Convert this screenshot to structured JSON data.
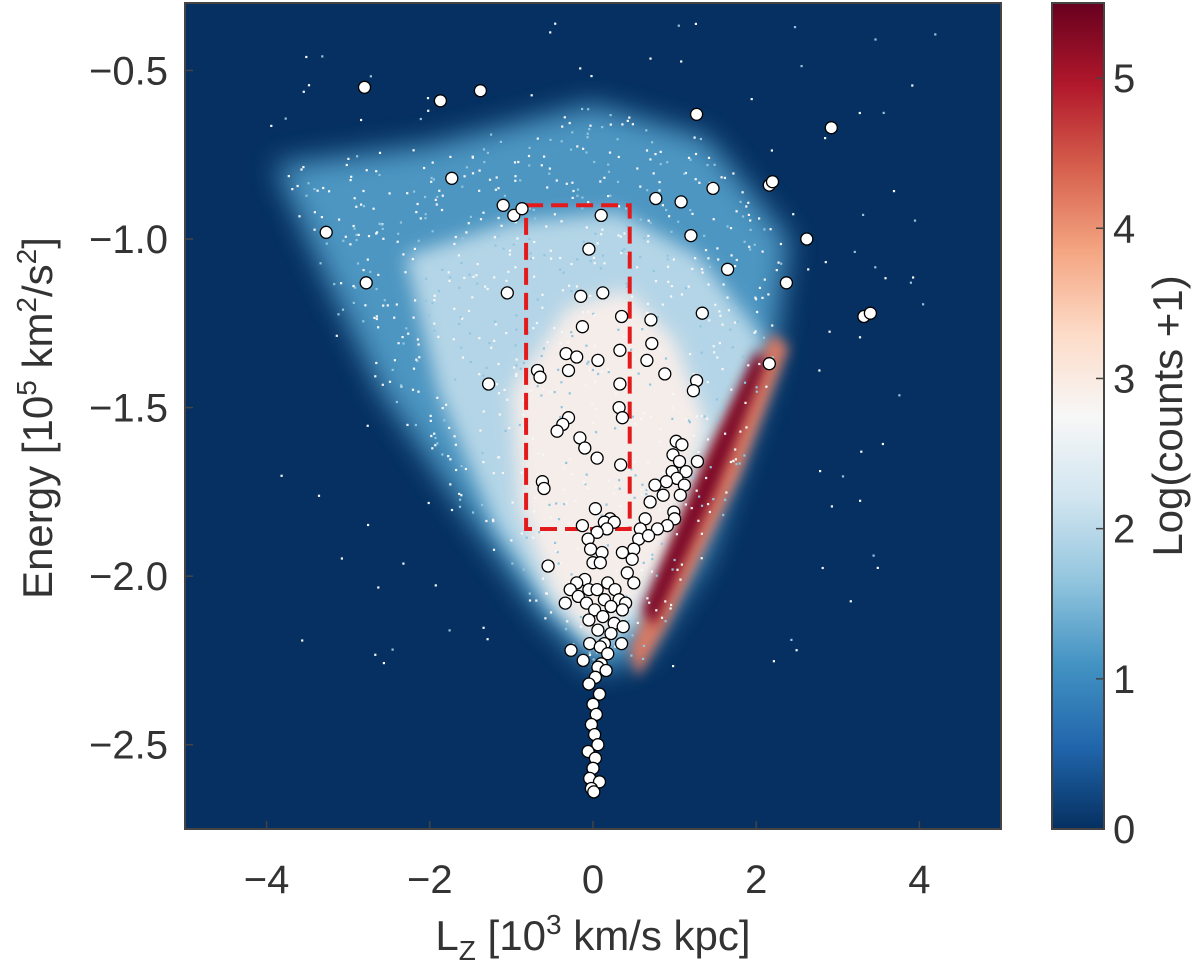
{
  "chart_data": {
    "type": "heatmap",
    "title": "",
    "xlabel": {
      "main": "L",
      "sub": "Z",
      "bracket_open": " [10",
      "sup": "3",
      "rest": " km/s kpc]"
    },
    "ylabel": {
      "main": "Energy [10",
      "sup1": "5",
      "mid": " km",
      "sup2": "2",
      "mid2": "/s",
      "sup3": "2",
      "rest": "]"
    },
    "colorbar_label": "Log(counts +1)",
    "xlim": [
      -5,
      5
    ],
    "ylim": [
      -2.75,
      -0.3
    ],
    "colorbar_range": [
      0,
      5.5
    ],
    "x_ticks": [
      {
        "value": -4,
        "label": "−4"
      },
      {
        "value": -2,
        "label": "−2"
      },
      {
        "value": 0,
        "label": "0"
      },
      {
        "value": 2,
        "label": "2"
      },
      {
        "value": 4,
        "label": "4"
      }
    ],
    "y_ticks": [
      {
        "value": -0.5,
        "label": "−0.5"
      },
      {
        "value": -1.0,
        "label": "−1.0"
      },
      {
        "value": -1.5,
        "label": "−1.5"
      },
      {
        "value": -2.0,
        "label": "−2.0"
      },
      {
        "value": -2.5,
        "label": "−2.5"
      }
    ],
    "colorbar_ticks": [
      {
        "value": 0,
        "label": "0"
      },
      {
        "value": 1,
        "label": "1"
      },
      {
        "value": 2,
        "label": "2"
      },
      {
        "value": 3,
        "label": "3"
      },
      {
        "value": 4,
        "label": "4"
      },
      {
        "value": 5,
        "label": "5"
      }
    ],
    "colors": {
      "background": "#053061",
      "axes_edge": "#444444",
      "rectangle": "#e31a1c",
      "points_fill": "#ffffff",
      "points_edge": "#000000",
      "colormap": [
        "#053061",
        "#2166ac",
        "#4393c3",
        "#92c5de",
        "#d1e5f0",
        "#f7f7f7",
        "#fddbc7",
        "#f4a582",
        "#d6604d",
        "#b2182b",
        "#67001f"
      ]
    },
    "selection_box": {
      "x": [
        -0.82,
        0.45
      ],
      "y": [
        -1.86,
        -0.9
      ]
    },
    "density_regions": [
      {
        "name": "sparse-halo",
        "level": 1.2,
        "polygon": [
          [
            -3.9,
            -0.78
          ],
          [
            -2.0,
            -0.72
          ],
          [
            0.0,
            -0.6
          ],
          [
            1.4,
            -0.7
          ],
          [
            2.4,
            -1.0
          ],
          [
            2.2,
            -1.38
          ],
          [
            1.4,
            -1.95
          ],
          [
            0.6,
            -2.25
          ],
          [
            0.0,
            -2.28
          ],
          [
            -0.7,
            -2.1
          ],
          [
            -1.6,
            -1.8
          ],
          [
            -2.6,
            -1.45
          ],
          [
            -3.3,
            -1.1
          ]
        ]
      },
      {
        "name": "medium-halo",
        "level": 2.0,
        "polygon": [
          [
            -2.3,
            -1.05
          ],
          [
            -1.0,
            -0.95
          ],
          [
            0.3,
            -0.92
          ],
          [
            1.3,
            -1.05
          ],
          [
            2.1,
            -1.3
          ],
          [
            1.6,
            -1.7
          ],
          [
            0.8,
            -2.1
          ],
          [
            0.1,
            -2.22
          ],
          [
            -0.5,
            -2.1
          ],
          [
            -1.2,
            -1.85
          ],
          [
            -1.9,
            -1.45
          ]
        ]
      },
      {
        "name": "dense-core",
        "level": 2.9,
        "polygon": [
          [
            -1.0,
            -1.45
          ],
          [
            -0.3,
            -1.2
          ],
          [
            0.4,
            -1.15
          ],
          [
            1.0,
            -1.3
          ],
          [
            1.4,
            -1.55
          ],
          [
            1.0,
            -1.9
          ],
          [
            0.5,
            -2.1
          ],
          [
            0.0,
            -2.2
          ],
          [
            -0.5,
            -2.05
          ],
          [
            -0.9,
            -1.8
          ]
        ]
      },
      {
        "name": "disk-wedge",
        "level": 4.2,
        "polygon": [
          [
            0.45,
            -2.22
          ],
          [
            1.5,
            -1.6
          ],
          [
            2.2,
            -1.28
          ],
          [
            2.4,
            -1.32
          ],
          [
            1.8,
            -1.7
          ],
          [
            0.9,
            -2.15
          ],
          [
            0.55,
            -2.3
          ]
        ]
      },
      {
        "name": "disk-ridge",
        "level": 5.4,
        "polygon": [
          [
            0.6,
            -2.1
          ],
          [
            1.3,
            -1.7
          ],
          [
            2.0,
            -1.33
          ],
          [
            2.12,
            -1.37
          ],
          [
            1.5,
            -1.75
          ],
          [
            0.75,
            -2.15
          ]
        ]
      }
    ],
    "points": [
      [
        -2.8,
        -0.55
      ],
      [
        -1.87,
        -0.59
      ],
      [
        -1.38,
        -0.56
      ],
      [
        1.27,
        -0.63
      ],
      [
        2.92,
        -0.67
      ],
      [
        -1.73,
        -0.82
      ],
      [
        1.47,
        -0.85
      ],
      [
        2.16,
        -0.84
      ],
      [
        2.2,
        -0.83
      ],
      [
        -0.97,
        -0.93
      ],
      [
        -0.87,
        -0.91
      ],
      [
        -1.1,
        -0.9
      ],
      [
        0.77,
        -0.88
      ],
      [
        1.08,
        -0.89
      ],
      [
        0.1,
        -0.93
      ],
      [
        -3.27,
        -0.98
      ],
      [
        -2.78,
        -1.13
      ],
      [
        -0.05,
        -1.03
      ],
      [
        1.2,
        -0.99
      ],
      [
        2.62,
        -1.0
      ],
      [
        1.65,
        -1.09
      ],
      [
        2.37,
        -1.13
      ],
      [
        -1.05,
        -1.16
      ],
      [
        -0.15,
        -1.17
      ],
      [
        0.12,
        -1.16
      ],
      [
        3.32,
        -1.23
      ],
      [
        3.4,
        -1.22
      ],
      [
        1.34,
        -1.22
      ],
      [
        0.35,
        -1.23
      ],
      [
        0.71,
        -1.24
      ],
      [
        -0.13,
        -1.26
      ],
      [
        0.33,
        -1.33
      ],
      [
        0.72,
        -1.31
      ],
      [
        -0.33,
        -1.34
      ],
      [
        -0.2,
        -1.35
      ],
      [
        0.06,
        -1.36
      ],
      [
        0.66,
        -1.36
      ],
      [
        2.16,
        -1.37
      ],
      [
        -0.3,
        -1.39
      ],
      [
        -0.68,
        -1.39
      ],
      [
        -0.65,
        -1.41
      ],
      [
        0.88,
        -1.4
      ],
      [
        1.27,
        -1.42
      ],
      [
        -1.28,
        -1.43
      ],
      [
        0.33,
        -1.43
      ],
      [
        1.23,
        -1.45
      ],
      [
        0.32,
        -1.5
      ],
      [
        0.36,
        -1.53
      ],
      [
        -0.3,
        -1.53
      ],
      [
        -0.37,
        -1.55
      ],
      [
        -0.44,
        -1.57
      ],
      [
        -0.16,
        -1.59
      ],
      [
        -0.1,
        -1.62
      ],
      [
        1.02,
        -1.6
      ],
      [
        1.09,
        -1.61
      ],
      [
        0.98,
        -1.64
      ],
      [
        1.06,
        -1.66
      ],
      [
        0.05,
        -1.65
      ],
      [
        1.28,
        -1.66
      ],
      [
        0.34,
        -1.67
      ],
      [
        0.97,
        -1.69
      ],
      [
        1.14,
        -1.69
      ],
      [
        1.03,
        -1.71
      ],
      [
        0.9,
        -1.72
      ],
      [
        -0.62,
        -1.72
      ],
      [
        -0.6,
        -1.74
      ],
      [
        1.12,
        -1.73
      ],
      [
        0.76,
        -1.73
      ],
      [
        0.86,
        -1.76
      ],
      [
        1.07,
        -1.76
      ],
      [
        0.7,
        -1.78
      ],
      [
        0.03,
        -1.8
      ],
      [
        0.99,
        -1.81
      ],
      [
        0.64,
        -1.83
      ],
      [
        0.21,
        -1.83
      ],
      [
        0.14,
        -1.84
      ],
      [
        0.26,
        -1.84
      ],
      [
        1.0,
        -1.83
      ],
      [
        0.91,
        -1.85
      ],
      [
        -0.13,
        -1.85
      ],
      [
        0.58,
        -1.86
      ],
      [
        0.79,
        -1.86
      ],
      [
        0.17,
        -1.86
      ],
      [
        0.05,
        -1.87
      ],
      [
        -0.06,
        -1.89
      ],
      [
        0.56,
        -1.89
      ],
      [
        0.68,
        -1.88
      ],
      [
        0.5,
        -1.92
      ],
      [
        -0.03,
        -1.92
      ],
      [
        0.11,
        -1.93
      ],
      [
        0.36,
        -1.93
      ],
      [
        0.48,
        -1.95
      ],
      [
        0.0,
        -1.96
      ],
      [
        0.09,
        -1.96
      ],
      [
        -0.55,
        -1.97
      ],
      [
        0.42,
        -1.99
      ],
      [
        0.18,
        -2.02
      ],
      [
        -0.1,
        -2.01
      ],
      [
        -0.2,
        -2.02
      ],
      [
        0.5,
        -2.02
      ],
      [
        -0.05,
        -2.04
      ],
      [
        0.05,
        -2.04
      ],
      [
        -0.28,
        -2.04
      ],
      [
        0.27,
        -2.04
      ],
      [
        -0.18,
        -2.06
      ],
      [
        0.14,
        -2.07
      ],
      [
        0.32,
        -2.07
      ],
      [
        0.22,
        -2.09
      ],
      [
        -0.08,
        -2.08
      ],
      [
        0.02,
        -2.1
      ],
      [
        0.4,
        -2.08
      ],
      [
        0.36,
        -2.1
      ],
      [
        -0.34,
        -2.08
      ],
      [
        0.12,
        -2.12
      ],
      [
        -0.05,
        -2.13
      ],
      [
        0.26,
        -2.14
      ],
      [
        0.37,
        -2.15
      ],
      [
        0.06,
        -2.16
      ],
      [
        0.22,
        -2.17
      ],
      [
        0.14,
        -2.2
      ],
      [
        -0.04,
        -2.2
      ],
      [
        0.09,
        -2.21
      ],
      [
        -0.27,
        -2.22
      ],
      [
        0.35,
        -2.2
      ],
      [
        0.18,
        -2.23
      ],
      [
        -0.12,
        -2.25
      ],
      [
        0.1,
        -2.26
      ],
      [
        0.06,
        -2.27
      ],
      [
        0.16,
        -2.28
      ],
      [
        0.03,
        -2.3
      ],
      [
        -0.05,
        -2.32
      ],
      [
        0.08,
        -2.35
      ],
      [
        0.0,
        -2.38
      ],
      [
        0.04,
        -2.41
      ],
      [
        -0.02,
        -2.44
      ],
      [
        0.02,
        -2.47
      ],
      [
        0.06,
        -2.5
      ],
      [
        -0.06,
        -2.52
      ],
      [
        0.03,
        -2.54
      ],
      [
        0.0,
        -2.57
      ],
      [
        -0.04,
        -2.6
      ],
      [
        0.08,
        -2.61
      ],
      [
        -0.02,
        -2.63
      ],
      [
        0.01,
        -2.64
      ]
    ]
  }
}
